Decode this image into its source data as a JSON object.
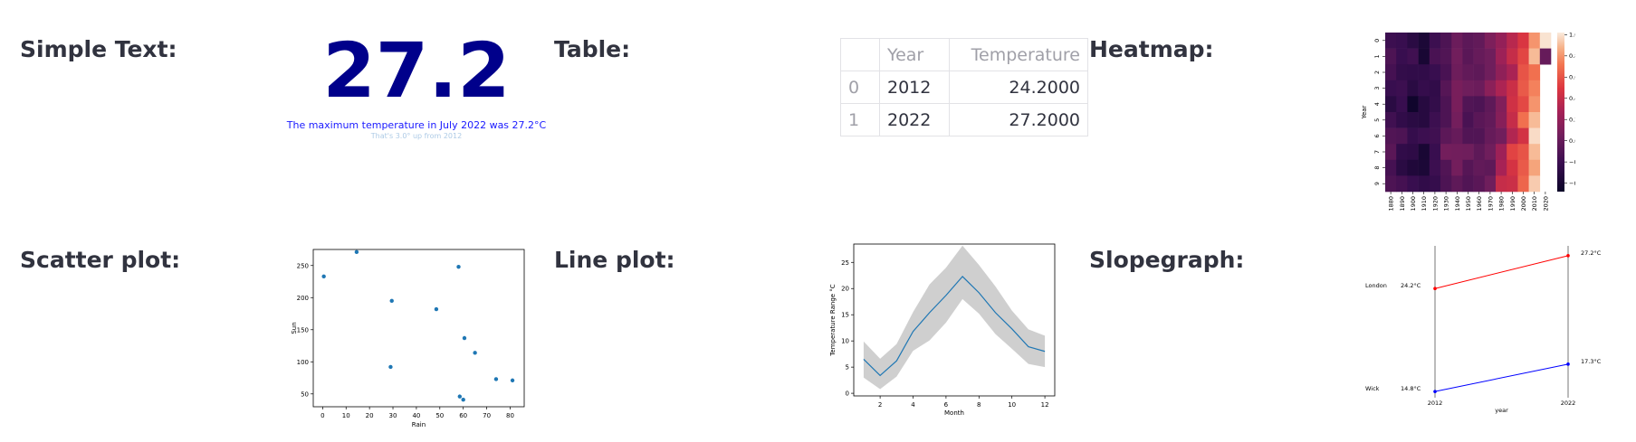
{
  "labels": {
    "simple_text": "Simple Text:",
    "table": "Table:",
    "heatmap": "Heatmap:",
    "scatter": "Scatter plot:",
    "line": "Line plot:",
    "slope": "Slopegraph:"
  },
  "simple_text": {
    "value": "27.2",
    "subtitle": "The maximum temperature in July 2022 was 27.2°C",
    "note": "That's 3.0° up from 2012",
    "value_color": "#00008b",
    "subtitle_color": "#1a1aff",
    "note_color": "#aecbe6"
  },
  "table": {
    "columns": [
      "",
      "Year",
      "Temperature"
    ],
    "rows": [
      [
        "0",
        "2012",
        "24.2000"
      ],
      [
        "1",
        "2022",
        "27.2000"
      ]
    ]
  },
  "charts": {
    "heatmap": {
      "type": "heatmap",
      "ylabel": "Year",
      "rows": [
        "0",
        "1",
        "2",
        "3",
        "4",
        "5",
        "6",
        "7",
        "8",
        "9"
      ],
      "columns": [
        "1880",
        "1890",
        "1900",
        "1910",
        "1920",
        "1930",
        "1940",
        "1950",
        "1960",
        "1970",
        "1980",
        "1990",
        "2000",
        "2010",
        "2020"
      ],
      "values": [
        [
          -0.2,
          -0.22,
          -0.3,
          -0.38,
          -0.2,
          -0.12,
          0.02,
          -0.05,
          -0.02,
          0.1,
          0.2,
          0.35,
          0.48,
          0.8,
          1.0
        ],
        [
          -0.12,
          -0.22,
          -0.18,
          -0.4,
          -0.14,
          -0.1,
          0.05,
          -0.06,
          0.0,
          0.04,
          0.24,
          0.4,
          0.55,
          0.9,
          0.0
        ],
        [
          -0.16,
          -0.25,
          -0.26,
          -0.26,
          -0.22,
          -0.14,
          0.03,
          -0.02,
          -0.04,
          0.04,
          0.18,
          0.29,
          0.6,
          0.7,
          null
        ],
        [
          -0.22,
          -0.2,
          -0.3,
          -0.24,
          -0.26,
          -0.08,
          0.08,
          0.04,
          0.02,
          0.16,
          0.3,
          0.42,
          0.62,
          0.75,
          null
        ],
        [
          -0.3,
          -0.22,
          -0.45,
          -0.32,
          -0.25,
          -0.12,
          0.08,
          -0.1,
          -0.12,
          -0.04,
          0.12,
          0.44,
          0.56,
          0.8,
          null
        ],
        [
          -0.18,
          -0.26,
          -0.3,
          -0.32,
          -0.2,
          -0.12,
          0.06,
          -0.14,
          -0.06,
          -0.02,
          0.14,
          0.4,
          0.7,
          0.9,
          null
        ],
        [
          -0.1,
          -0.12,
          -0.24,
          -0.2,
          -0.18,
          -0.05,
          0.0,
          -0.1,
          -0.1,
          0.0,
          0.05,
          0.32,
          0.45,
          0.98,
          null
        ],
        [
          -0.06,
          -0.26,
          -0.28,
          -0.4,
          -0.22,
          0.06,
          0.05,
          0.04,
          -0.04,
          0.04,
          0.24,
          0.54,
          0.6,
          0.9,
          null
        ],
        [
          -0.16,
          -0.3,
          -0.36,
          -0.38,
          -0.2,
          -0.1,
          0.06,
          -0.08,
          -0.02,
          -0.04,
          0.28,
          0.46,
          0.62,
          0.84,
          null
        ],
        [
          -0.12,
          -0.16,
          -0.22,
          -0.26,
          -0.24,
          -0.12,
          -0.04,
          -0.1,
          -0.06,
          0.04,
          0.4,
          0.42,
          0.66,
          0.94,
          null
        ]
      ],
      "colorbar_ticks": [
        "1.0",
        "0.8",
        "0.6",
        "0.4",
        "0.2",
        "0.0",
        "−0.2",
        "−0.4"
      ],
      "vmin": -0.48,
      "vmax": 1.02
    },
    "scatter": {
      "type": "scatter",
      "xlabel": "Rain",
      "ylabel": "Sun",
      "xticks": [
        0,
        10,
        20,
        30,
        40,
        50,
        60,
        70,
        80
      ],
      "yticks": [
        50,
        100,
        150,
        200,
        250
      ],
      "xlim": [
        -4,
        86
      ],
      "ylim": [
        30,
        275
      ],
      "x": [
        0.5,
        14.5,
        29.5,
        29,
        48.5,
        58,
        58.5,
        60.5,
        60,
        65,
        74,
        81
      ],
      "y": [
        233,
        271,
        195,
        92,
        182,
        248,
        46,
        137,
        41,
        114,
        73,
        71
      ],
      "color": "#1f77b4"
    },
    "line": {
      "type": "line",
      "xlabel": "Month",
      "ylabel": "Temperature Range °C",
      "xticks": [
        2,
        4,
        6,
        8,
        10,
        12
      ],
      "yticks": [
        0,
        5,
        10,
        15,
        20,
        25
      ],
      "xlim": [
        0.4,
        12.6
      ],
      "ylim": [
        -0.5,
        28.5
      ],
      "x": [
        1,
        2,
        3,
        4,
        5,
        6,
        7,
        8,
        9,
        10,
        11,
        12
      ],
      "y": [
        6.5,
        3.4,
        6.2,
        11.8,
        15.4,
        18.7,
        22.3,
        19.2,
        15.4,
        12.3,
        8.9,
        8.0
      ],
      "lower": [
        3.0,
        0.8,
        3.2,
        8.1,
        10.1,
        13.5,
        18.0,
        15.2,
        11.3,
        8.5,
        5.6,
        5.0
      ],
      "upper": [
        9.9,
        6.6,
        9.4,
        15.5,
        20.8,
        24.0,
        28.2,
        24.5,
        20.4,
        15.8,
        12.2,
        11.0
      ],
      "color": "#1f77b4",
      "band_color": "#cfcfcf"
    },
    "slope": {
      "type": "line",
      "xlabel": "year",
      "xticks": [
        "2012",
        "2022"
      ],
      "ylim": [
        14.4,
        27.6
      ],
      "series": [
        {
          "name": "London",
          "values": [
            24.2,
            27.2
          ],
          "left_label": "24.2°C",
          "right_label": "27.2°C",
          "color": "#ff0000"
        },
        {
          "name": "Wick",
          "values": [
            14.8,
            17.3
          ],
          "left_label": "14.8°C",
          "right_label": "17.3°C",
          "color": "#0000ff"
        }
      ]
    }
  }
}
